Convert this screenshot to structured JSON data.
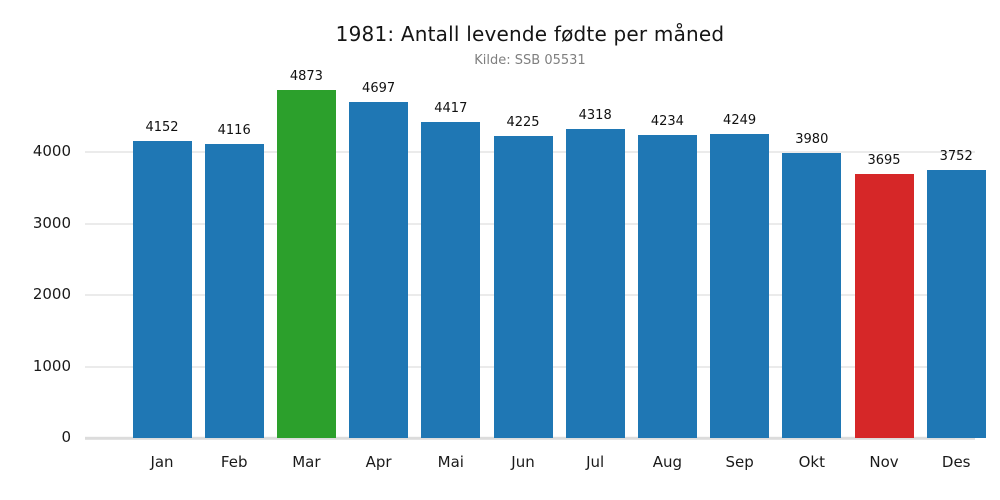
{
  "chart_data": {
    "type": "bar",
    "title": "1981: Antall levende fødte per måned",
    "subtitle": "Kilde: SSB 05531",
    "categories": [
      "Jan",
      "Feb",
      "Mar",
      "Apr",
      "Mai",
      "Jun",
      "Jul",
      "Aug",
      "Sep",
      "Okt",
      "Nov",
      "Des"
    ],
    "values": [
      4152,
      4116,
      4873,
      4697,
      4417,
      4225,
      4318,
      4234,
      4249,
      3980,
      3695,
      3752
    ],
    "bar_colors": [
      "#1f77b4",
      "#1f77b4",
      "#2ca02c",
      "#1f77b4",
      "#1f77b4",
      "#1f77b4",
      "#1f77b4",
      "#1f77b4",
      "#1f77b4",
      "#1f77b4",
      "#d62728",
      "#1f77b4"
    ],
    "xlabel": "",
    "ylabel": "",
    "y_ticks": [
      0,
      1000,
      2000,
      3000,
      4000
    ],
    "ylim": [
      0,
      5007
    ],
    "grid": "horizontal-only",
    "legend": "none",
    "data_labels": "above-bars",
    "colors": {
      "bar_default": "#1f77b4",
      "bar_max_highlight": "#2ca02c",
      "bar_min_highlight": "#d62728",
      "gridline": "#ebebeb",
      "baseline": "#dcdcdc",
      "title_text": "#151515",
      "subtitle_text": "#7f7f7f",
      "tick_text": "#1a1a1a",
      "background": "#ffffff"
    }
  }
}
